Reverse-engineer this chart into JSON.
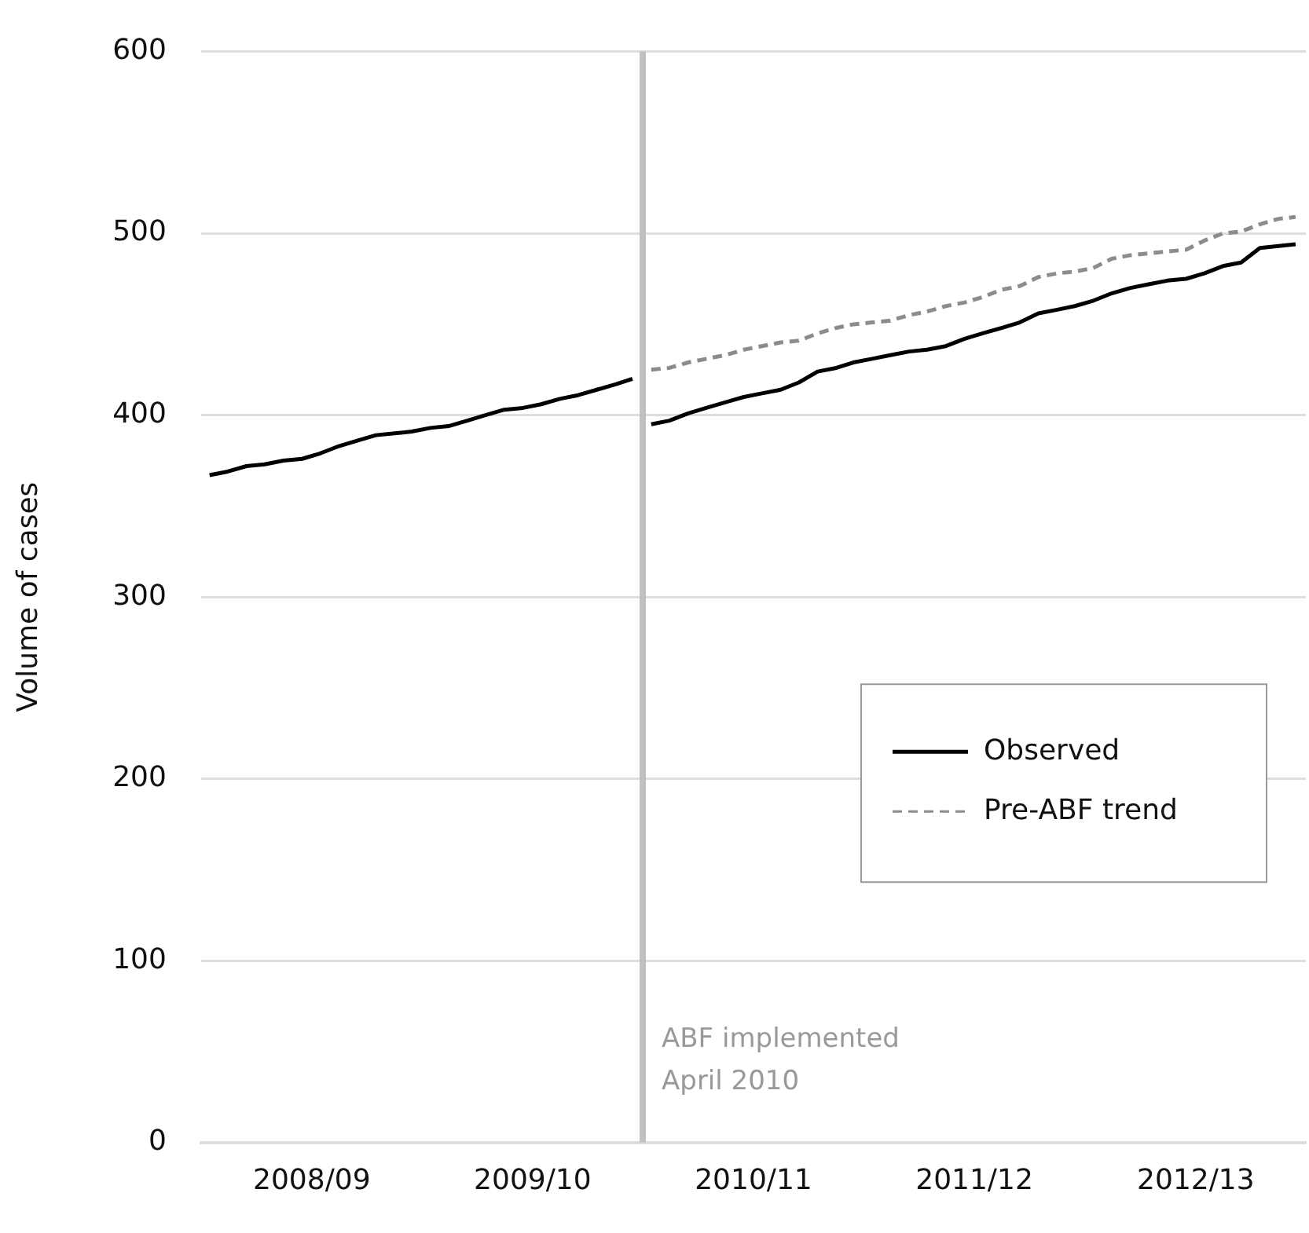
{
  "chart_data": {
    "type": "line",
    "ylabel": "Volume of cases",
    "xlim": [
      "2008-04-01",
      "2013-04-01"
    ],
    "ylim": [
      0,
      600
    ],
    "xticks": [
      {
        "value": "2008-10-01",
        "label": "2008/09"
      },
      {
        "value": "2009-10-01",
        "label": "2009/10"
      },
      {
        "value": "2010-10-01",
        "label": "2010/11"
      },
      {
        "value": "2011-10-01",
        "label": "2011/12"
      },
      {
        "value": "2012-10-01",
        "label": "2012/13"
      }
    ],
    "yticks": [
      0,
      100,
      200,
      300,
      400,
      500,
      600
    ],
    "grid": "y",
    "legend": "right",
    "marker": "none",
    "ref_lines": [
      {
        "axis": "x",
        "value": "2010-04-01",
        "label": "ABF implemented\nApril 2010",
        "color": "#c0c0c0"
      }
    ],
    "series": [
      {
        "name": "Observed",
        "color": "#000000",
        "line_style": "solid",
        "x": [
          "2008-04-15",
          "2008-05-15",
          "2008-06-15",
          "2008-07-15",
          "2008-08-15",
          "2008-09-15",
          "2008-10-15",
          "2008-11-15",
          "2008-12-15",
          "2009-01-15",
          "2009-02-15",
          "2009-03-15",
          "2009-04-15",
          "2009-05-15",
          "2009-06-15",
          "2009-07-15",
          "2009-08-15",
          "2009-09-15",
          "2009-10-15",
          "2009-11-15",
          "2009-12-15",
          "2010-01-15",
          "2010-02-15",
          "2010-03-15",
          "2010-04-01",
          "2010-04-15",
          "2010-05-15",
          "2010-06-15",
          "2010-07-15",
          "2010-08-15",
          "2010-09-15",
          "2010-10-15",
          "2010-11-15",
          "2010-12-15",
          "2011-01-15",
          "2011-02-15",
          "2011-03-15",
          "2011-04-15",
          "2011-05-15",
          "2011-06-15",
          "2011-07-15",
          "2011-08-15",
          "2011-09-15",
          "2011-10-15",
          "2011-11-15",
          "2011-12-15",
          "2012-01-15",
          "2012-02-15",
          "2012-03-15",
          "2012-04-15",
          "2012-05-15",
          "2012-06-15",
          "2012-07-15",
          "2012-08-15",
          "2012-09-15",
          "2012-10-15",
          "2012-11-15",
          "2012-12-15",
          "2013-01-15",
          "2013-02-15",
          "2013-03-15"
        ],
        "values": [
          367,
          369,
          372,
          373,
          375,
          376,
          379,
          383,
          386,
          389,
          390,
          391,
          393,
          394,
          397,
          400,
          403,
          404,
          406,
          409,
          411,
          414,
          417,
          420,
          null,
          395,
          397,
          401,
          404,
          407,
          410,
          412,
          414,
          418,
          424,
          426,
          429,
          431,
          433,
          435,
          436,
          438,
          442,
          445,
          448,
          451,
          456,
          458,
          460,
          463,
          467,
          470,
          472,
          474,
          475,
          478,
          482,
          484,
          492,
          493,
          494
        ]
      },
      {
        "name": "Pre-ABF trend",
        "color": "#8c8c8c",
        "line_style": "dashed",
        "x": [
          "2010-04-15",
          "2010-05-15",
          "2010-06-15",
          "2010-07-15",
          "2010-08-15",
          "2010-09-15",
          "2010-10-15",
          "2010-11-15",
          "2010-12-15",
          "2011-01-15",
          "2011-02-15",
          "2011-03-15",
          "2011-04-15",
          "2011-05-15",
          "2011-06-15",
          "2011-07-15",
          "2011-08-15",
          "2011-09-15",
          "2011-10-15",
          "2011-11-15",
          "2011-12-15",
          "2012-01-15",
          "2012-02-15",
          "2012-03-15",
          "2012-04-15",
          "2012-05-15",
          "2012-06-15",
          "2012-07-15",
          "2012-08-15",
          "2012-09-15",
          "2012-10-15",
          "2012-11-15",
          "2012-12-15",
          "2013-01-15",
          "2013-02-15",
          "2013-03-15"
        ],
        "values": [
          425,
          426,
          429,
          431,
          433,
          436,
          438,
          440,
          441,
          445,
          448,
          450,
          451,
          452,
          455,
          457,
          460,
          462,
          465,
          469,
          471,
          476,
          478,
          479,
          481,
          486,
          488,
          489,
          490,
          491,
          496,
          500,
          501,
          505,
          508,
          509
        ]
      }
    ]
  }
}
